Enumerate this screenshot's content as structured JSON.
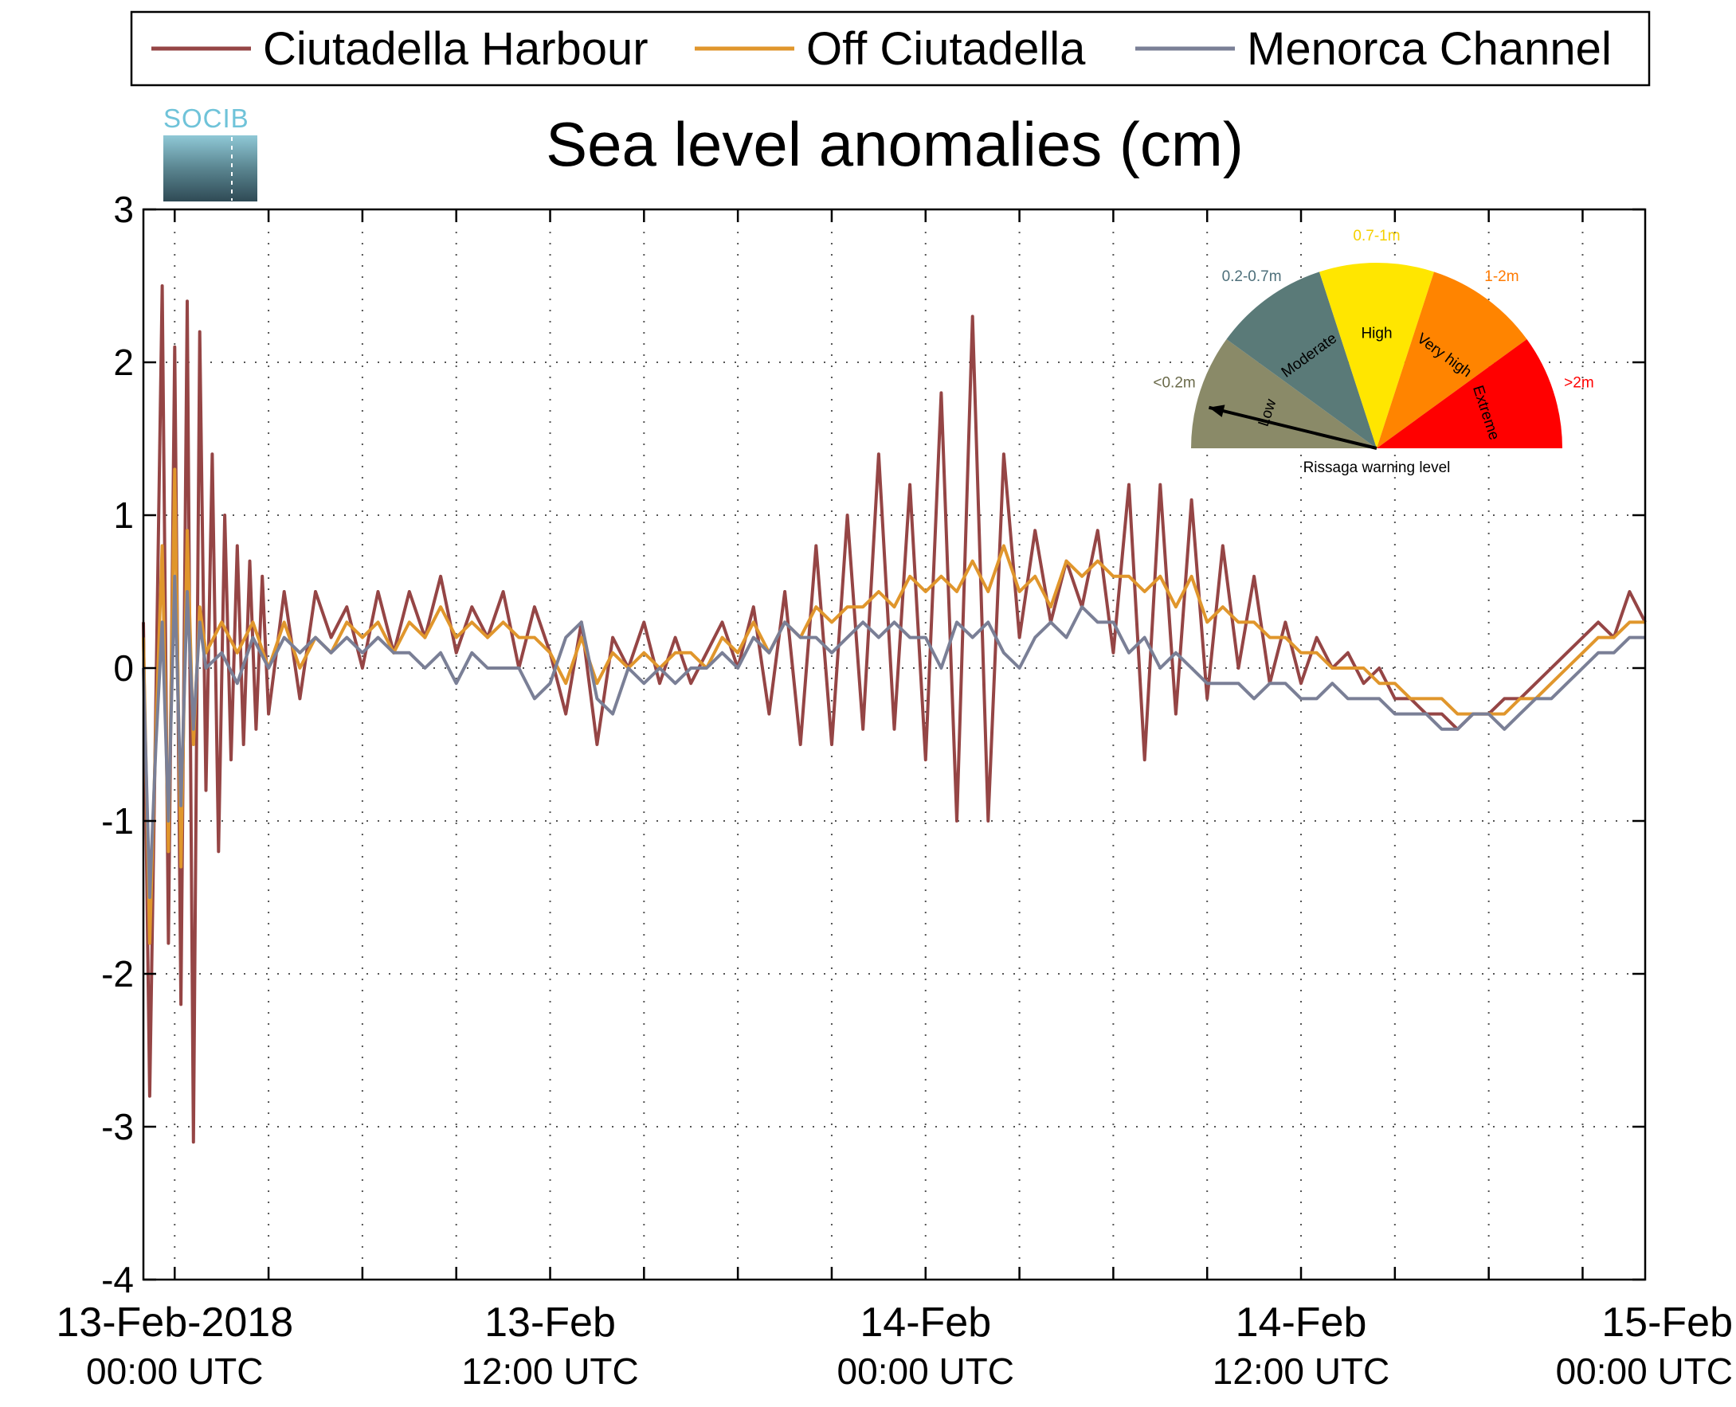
{
  "chart_data": {
    "type": "line",
    "title": "Sea level anomalies (cm)",
    "xlabel": "",
    "ylabel": "",
    "ylim": [
      -4,
      3
    ],
    "yticks": [
      "3",
      "2",
      "1",
      "0",
      "-1",
      "-2",
      "-3",
      "-4"
    ],
    "x_range_hours": [
      -1,
      47
    ],
    "x_ticks": [
      {
        "hour": 0,
        "date": "13-Feb-2018",
        "time": "00:00 UTC"
      },
      {
        "hour": 12,
        "date": "13-Feb",
        "time": "12:00 UTC"
      },
      {
        "hour": 24,
        "date": "14-Feb",
        "time": "00:00 UTC"
      },
      {
        "hour": 36,
        "date": "14-Feb",
        "time": "12:00 UTC"
      },
      {
        "hour": 48,
        "date": "15-Feb",
        "time": "00:00 UTC"
      }
    ],
    "grid": true,
    "legend_position": "top",
    "series": [
      {
        "name": "Ciutadella Harbour",
        "color": "#954545",
        "x": [
          -1,
          -0.8,
          -0.6,
          -0.4,
          -0.2,
          0,
          0.2,
          0.4,
          0.6,
          0.8,
          1,
          1.2,
          1.4,
          1.6,
          1.8,
          2,
          2.2,
          2.4,
          2.6,
          2.8,
          3,
          3.5,
          4,
          4.5,
          5,
          5.5,
          6,
          6.5,
          7,
          7.5,
          8,
          8.5,
          9,
          9.5,
          10,
          10.5,
          11,
          11.5,
          12,
          12.5,
          13,
          13.5,
          14,
          14.5,
          15,
          15.5,
          16,
          16.5,
          17,
          17.5,
          18,
          18.5,
          19,
          19.5,
          20,
          20.5,
          21,
          21.5,
          22,
          22.5,
          23,
          23.5,
          24,
          24.5,
          25,
          25.5,
          26,
          26.5,
          27,
          27.5,
          28,
          28.5,
          29,
          29.5,
          30,
          30.5,
          31,
          31.5,
          32,
          32.5,
          33,
          33.5,
          34,
          34.5,
          35,
          35.5,
          36,
          36.5,
          37,
          37.5,
          38,
          38.5,
          39,
          39.5,
          40,
          40.5,
          41,
          41.5,
          42,
          42.5,
          43,
          43.5,
          44,
          44.5,
          45,
          45.5,
          46,
          46.5,
          47
        ],
        "values": [
          0.3,
          -2.8,
          -0.2,
          2.5,
          -1.8,
          2.1,
          -2.2,
          2.4,
          -3.1,
          2.2,
          -0.8,
          1.4,
          -1.2,
          1.0,
          -0.6,
          0.8,
          -0.5,
          0.7,
          -0.4,
          0.6,
          -0.3,
          0.5,
          -0.2,
          0.5,
          0.2,
          0.4,
          0.0,
          0.5,
          0.1,
          0.5,
          0.2,
          0.6,
          0.1,
          0.4,
          0.2,
          0.5,
          0.0,
          0.4,
          0.1,
          -0.3,
          0.3,
          -0.5,
          0.2,
          0.0,
          0.3,
          -0.1,
          0.2,
          -0.1,
          0.1,
          0.3,
          0.0,
          0.4,
          -0.3,
          0.5,
          -0.5,
          0.8,
          -0.5,
          1.0,
          -0.4,
          1.4,
          -0.4,
          1.2,
          -0.6,
          1.8,
          -1.0,
          2.3,
          -1.0,
          1.4,
          0.2,
          0.9,
          0.3,
          0.7,
          0.4,
          0.9,
          0.1,
          1.2,
          -0.6,
          1.2,
          -0.3,
          1.1,
          -0.2,
          0.8,
          0.0,
          0.6,
          -0.1,
          0.3,
          -0.1,
          0.2,
          0.0,
          0.1,
          -0.1,
          0.0,
          -0.2,
          -0.2,
          -0.3,
          -0.3,
          -0.4,
          -0.3,
          -0.3,
          -0.2,
          -0.2,
          -0.1,
          0.0,
          0.1,
          0.2,
          0.3,
          0.2,
          0.5,
          0.3
        ]
      },
      {
        "name": "Off Ciutadella",
        "color": "#e0962c",
        "x": [
          -1,
          -0.8,
          -0.6,
          -0.4,
          -0.2,
          0,
          0.2,
          0.4,
          0.6,
          0.8,
          1,
          1.5,
          2,
          2.5,
          3,
          3.5,
          4,
          4.5,
          5,
          5.5,
          6,
          6.5,
          7,
          7.5,
          8,
          8.5,
          9,
          9.5,
          10,
          10.5,
          11,
          11.5,
          12,
          12.5,
          13,
          13.5,
          14,
          14.5,
          15,
          15.5,
          16,
          16.5,
          17,
          17.5,
          18,
          18.5,
          19,
          19.5,
          20,
          20.5,
          21,
          21.5,
          22,
          22.5,
          23,
          23.5,
          24,
          24.5,
          25,
          25.5,
          26,
          26.5,
          27,
          27.5,
          28,
          28.5,
          29,
          29.5,
          30,
          30.5,
          31,
          31.5,
          32,
          32.5,
          33,
          33.5,
          34,
          34.5,
          35,
          35.5,
          36,
          36.5,
          37,
          37.5,
          38,
          38.5,
          39,
          39.5,
          40,
          40.5,
          41,
          41.5,
          42,
          42.5,
          43,
          43.5,
          44,
          44.5,
          45,
          45.5,
          46,
          46.5,
          47
        ],
        "values": [
          0.2,
          -1.8,
          -0.4,
          0.8,
          -1.2,
          1.3,
          -1.3,
          0.9,
          -0.5,
          0.4,
          0.1,
          0.3,
          0.1,
          0.3,
          0.0,
          0.3,
          0.0,
          0.2,
          0.1,
          0.3,
          0.2,
          0.3,
          0.1,
          0.3,
          0.2,
          0.4,
          0.2,
          0.3,
          0.2,
          0.3,
          0.2,
          0.2,
          0.1,
          -0.1,
          0.2,
          -0.1,
          0.1,
          0.0,
          0.1,
          0.0,
          0.1,
          0.1,
          0.0,
          0.2,
          0.1,
          0.3,
          0.1,
          0.3,
          0.2,
          0.4,
          0.3,
          0.4,
          0.4,
          0.5,
          0.4,
          0.6,
          0.5,
          0.6,
          0.5,
          0.7,
          0.5,
          0.8,
          0.5,
          0.6,
          0.4,
          0.7,
          0.6,
          0.7,
          0.6,
          0.6,
          0.5,
          0.6,
          0.4,
          0.6,
          0.3,
          0.4,
          0.3,
          0.3,
          0.2,
          0.2,
          0.1,
          0.1,
          0.0,
          0.0,
          0.0,
          -0.1,
          -0.1,
          -0.2,
          -0.2,
          -0.2,
          -0.3,
          -0.3,
          -0.3,
          -0.3,
          -0.2,
          -0.2,
          -0.1,
          0.0,
          0.1,
          0.2,
          0.2,
          0.3,
          0.3
        ]
      },
      {
        "name": "Menorca Channel",
        "color": "#7a7f96",
        "x": [
          -1,
          -0.8,
          -0.6,
          -0.4,
          -0.2,
          0,
          0.2,
          0.4,
          0.6,
          0.8,
          1,
          1.5,
          2,
          2.5,
          3,
          3.5,
          4,
          4.5,
          5,
          5.5,
          6,
          6.5,
          7,
          7.5,
          8,
          8.5,
          9,
          9.5,
          10,
          10.5,
          11,
          11.5,
          12,
          12.5,
          13,
          13.5,
          14,
          14.5,
          15,
          15.5,
          16,
          16.5,
          17,
          17.5,
          18,
          18.5,
          19,
          19.5,
          20,
          20.5,
          21,
          21.5,
          22,
          22.5,
          23,
          23.5,
          24,
          24.5,
          25,
          25.5,
          26,
          26.5,
          27,
          27.5,
          28,
          28.5,
          29,
          29.5,
          30,
          30.5,
          31,
          31.5,
          32,
          32.5,
          33,
          33.5,
          34,
          34.5,
          35,
          35.5,
          36,
          36.5,
          37,
          37.5,
          38,
          38.5,
          39,
          39.5,
          40,
          40.5,
          41,
          41.5,
          42,
          42.5,
          43,
          43.5,
          44,
          44.5,
          45,
          45.5,
          46,
          46.5,
          47
        ],
        "values": [
          0.0,
          -1.5,
          -0.5,
          0.3,
          -1.0,
          0.6,
          -0.9,
          0.5,
          -0.4,
          0.3,
          0.0,
          0.1,
          -0.1,
          0.2,
          0.0,
          0.2,
          0.1,
          0.2,
          0.1,
          0.2,
          0.1,
          0.2,
          0.1,
          0.1,
          0.0,
          0.1,
          -0.1,
          0.1,
          0.0,
          0.0,
          0.0,
          -0.2,
          -0.1,
          0.2,
          0.3,
          -0.2,
          -0.3,
          0.0,
          -0.1,
          0.0,
          -0.1,
          0.0,
          0.0,
          0.1,
          0.0,
          0.2,
          0.1,
          0.3,
          0.2,
          0.2,
          0.1,
          0.2,
          0.3,
          0.2,
          0.3,
          0.2,
          0.2,
          0.0,
          0.3,
          0.2,
          0.3,
          0.1,
          0.0,
          0.2,
          0.3,
          0.2,
          0.4,
          0.3,
          0.3,
          0.1,
          0.2,
          0.0,
          0.1,
          0.0,
          -0.1,
          -0.1,
          -0.1,
          -0.2,
          -0.1,
          -0.1,
          -0.2,
          -0.2,
          -0.1,
          -0.2,
          -0.2,
          -0.2,
          -0.3,
          -0.3,
          -0.3,
          -0.4,
          -0.4,
          -0.3,
          -0.3,
          -0.4,
          -0.3,
          -0.2,
          -0.2,
          -0.1,
          0.0,
          0.1,
          0.1,
          0.2,
          0.2
        ]
      }
    ]
  },
  "logo": {
    "text": "SOCIB"
  },
  "gauge": {
    "title": "Rissaga warning level",
    "needle_level": "Low",
    "sectors": [
      {
        "label": "Low",
        "range": "<0.2m",
        "color": "#8a8a68",
        "range_color": "#6a6a4a"
      },
      {
        "label": "Moderate",
        "range": "0.2-0.7m",
        "color": "#5a7a78",
        "range_color": "#4d6f7a"
      },
      {
        "label": "High",
        "range": "0.7-1m",
        "color": "#ffe600",
        "range_color": "#f5d000"
      },
      {
        "label": "Very high",
        "range": "1-2m",
        "color": "#ff8400",
        "range_color": "#ff7a00"
      },
      {
        "label": "Extreme",
        "range": ">2m",
        "color": "#ff0000",
        "range_color": "#ff0000"
      }
    ]
  }
}
